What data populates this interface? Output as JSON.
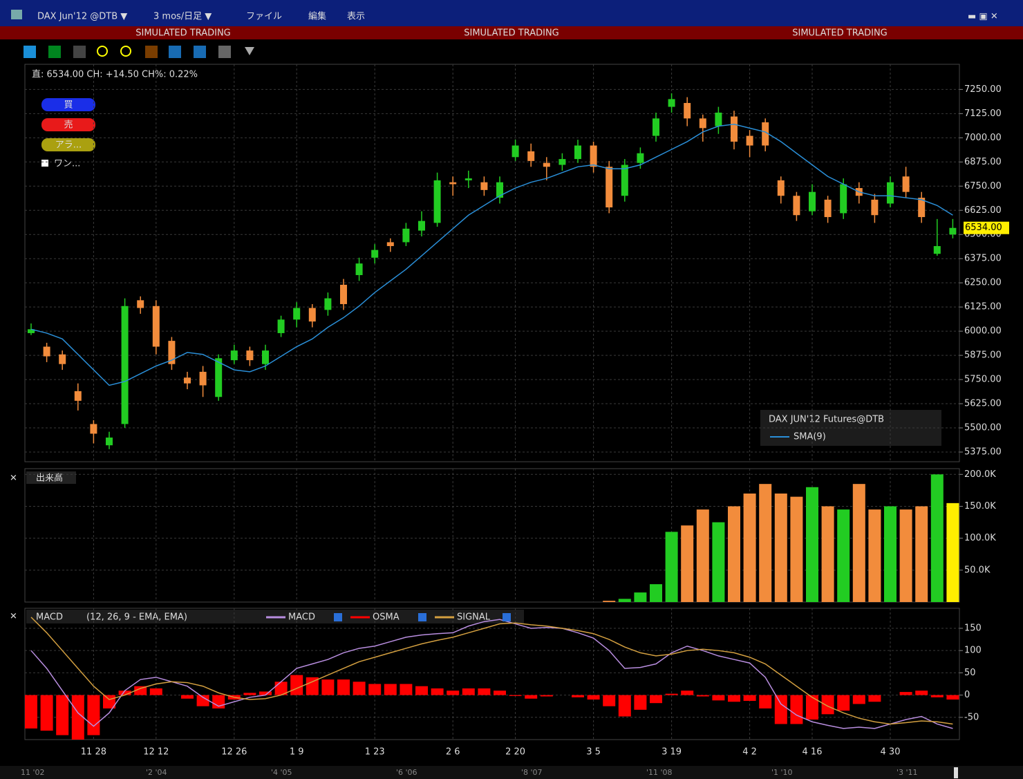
{
  "window": {
    "symbol": "DAX Jun'12 @DTB ▼",
    "period": "3 mos/日足 ▼",
    "menu": [
      "ファイル",
      "編集",
      "表示"
    ],
    "banner": [
      "SIMULATED TRADING",
      "SIMULATED TRADING",
      "SIMULATED TRADING"
    ]
  },
  "order_panel": {
    "info": "直: 6534.00 CH: +14.50 CH%: 0.22%",
    "buttons": [
      "買",
      "売",
      "アラ..."
    ],
    "checkbox": "ワン..."
  },
  "chart_data": [
    {
      "type": "candlestick",
      "legend_title": "DAX JUN'12 Futures@DTB",
      "up_color": "#22cc22",
      "down_color": "#f28c3c",
      "categories": [
        null,
        null,
        null,
        null,
        "11 28",
        null,
        null,
        null,
        "12 12",
        null,
        null,
        null,
        null,
        "12 26",
        null,
        null,
        null,
        "1 9",
        null,
        null,
        null,
        null,
        "1 23",
        null,
        null,
        null,
        null,
        "2 6",
        null,
        null,
        null,
        "2 20",
        null,
        null,
        null,
        null,
        "3 5",
        null,
        null,
        null,
        null,
        "3 19",
        null,
        null,
        null,
        null,
        "4 2",
        null,
        null,
        null,
        "4 16",
        null,
        null,
        null,
        null,
        "4 30",
        null,
        null,
        null,
        null
      ],
      "open": [
        5990,
        5920,
        5880,
        5690,
        5520,
        5410,
        5520,
        6160,
        6130,
        5950,
        5760,
        5790,
        5660,
        5850,
        5900,
        5830,
        5990,
        6060,
        6120,
        6110,
        6240,
        6290,
        6380,
        6460,
        6460,
        6520,
        6560,
        6770,
        6780,
        6770,
        6690,
        6900,
        6930,
        6870,
        6860,
        6890,
        6960,
        6850,
        6700,
        6870,
        7010,
        7160,
        7180,
        7100,
        7060,
        7110,
        7010,
        7080,
        6780,
        6700,
        6620,
        6680,
        6610,
        6740,
        6680,
        6660,
        6800,
        6690,
        6400,
        6500
      ],
      "high": [
        6040,
        5940,
        5900,
        5730,
        5540,
        5480,
        6170,
        6180,
        6160,
        5970,
        5790,
        5820,
        5880,
        5930,
        5920,
        5930,
        6080,
        6150,
        6140,
        6200,
        6270,
        6380,
        6450,
        6480,
        6560,
        6620,
        6820,
        6800,
        6830,
        6800,
        6800,
        6990,
        6970,
        6900,
        6920,
        6990,
        6980,
        6880,
        6890,
        6950,
        7130,
        7230,
        7210,
        7120,
        7160,
        7140,
        7040,
        7100,
        6800,
        6720,
        6760,
        6700,
        6790,
        6770,
        6710,
        6800,
        6850,
        6720,
        6580,
        6580
      ],
      "low": [
        5980,
        5840,
        5800,
        5590,
        5420,
        5390,
        5500,
        6090,
        5880,
        5800,
        5700,
        5660,
        5640,
        5830,
        5820,
        5800,
        5970,
        6020,
        6020,
        6080,
        6110,
        6260,
        6350,
        6410,
        6440,
        6490,
        6540,
        6700,
        6740,
        6700,
        6660,
        6880,
        6850,
        6780,
        6830,
        6870,
        6820,
        6610,
        6670,
        6840,
        6980,
        7130,
        7060,
        6980,
        7020,
        6940,
        6900,
        6930,
        6660,
        6570,
        6600,
        6560,
        6580,
        6660,
        6560,
        6640,
        6690,
        6560,
        6390,
        6480
      ],
      "close": [
        6010,
        5870,
        5830,
        5640,
        5470,
        5450,
        6130,
        6120,
        5920,
        5830,
        5730,
        5720,
        5860,
        5900,
        5850,
        5900,
        6060,
        6120,
        6050,
        6170,
        6140,
        6350,
        6420,
        6440,
        6530,
        6570,
        6780,
        6760,
        6790,
        6730,
        6770,
        6960,
        6880,
        6850,
        6890,
        6960,
        6850,
        6640,
        6860,
        6920,
        7100,
        7200,
        7100,
        7050,
        7130,
        6980,
        6960,
        6960,
        6700,
        6600,
        6720,
        6590,
        6760,
        6700,
        6600,
        6770,
        6720,
        6590,
        6440,
        6534
      ],
      "sma": {
        "name": "SMA(9)",
        "color": "#2a8fd8",
        "values": [
          6010,
          5990,
          5960,
          5880,
          5800,
          5720,
          5740,
          5780,
          5820,
          5850,
          5890,
          5880,
          5840,
          5800,
          5790,
          5820,
          5870,
          5920,
          5960,
          6020,
          6070,
          6130,
          6200,
          6260,
          6320,
          6390,
          6460,
          6530,
          6600,
          6650,
          6700,
          6740,
          6770,
          6790,
          6820,
          6850,
          6860,
          6840,
          6840,
          6860,
          6900,
          6940,
          6980,
          7030,
          7060,
          7070,
          7050,
          7030,
          6980,
          6920,
          6860,
          6800,
          6760,
          6720,
          6700,
          6700,
          6690,
          6680,
          6650,
          6600
        ]
      },
      "last_price": {
        "value": 6534,
        "label": "6534.00"
      },
      "ylim": [
        5325,
        7380
      ],
      "yticks": [
        {
          "value": 7250,
          "label": "7250.00"
        },
        {
          "value": 7125,
          "label": "7125.00"
        },
        {
          "value": 7000,
          "label": "7000.00"
        },
        {
          "value": 6875,
          "label": "6875.00"
        },
        {
          "value": 6750,
          "label": "6750.00"
        },
        {
          "value": 6625,
          "label": "6625.00"
        },
        {
          "value": 6500,
          "label": "6500.00"
        },
        {
          "value": 6375,
          "label": "6375.00"
        },
        {
          "value": 6250,
          "label": "6250.00"
        },
        {
          "value": 6125,
          "label": "6125.00"
        },
        {
          "value": 6000,
          "label": "6000.00"
        },
        {
          "value": 5875,
          "label": "5875.00"
        },
        {
          "value": 5750,
          "label": "5750.00"
        },
        {
          "value": 5625,
          "label": "5625.00"
        },
        {
          "value": 5500,
          "label": "5500.00"
        },
        {
          "value": 5375,
          "label": "5375.00"
        }
      ],
      "grid": true
    },
    {
      "type": "bar",
      "title": "出来高",
      "up_color": "#22cc22",
      "down_color": "#f28c3c",
      "highlight_color": "#ffee00",
      "values": [
        0,
        0,
        0,
        0,
        0,
        0,
        0,
        0,
        0,
        0,
        0,
        0,
        0,
        0,
        0,
        0,
        0,
        0,
        0,
        0,
        0,
        0,
        0,
        0,
        0,
        0,
        0,
        0,
        0,
        0,
        0,
        0,
        0,
        0,
        0,
        0,
        0,
        2000,
        5000,
        15000,
        28000,
        110000,
        120000,
        145000,
        125000,
        150000,
        170000,
        185000,
        170000,
        165000,
        180000,
        150000,
        145000,
        185000,
        145000,
        150000,
        145000,
        150000,
        200000,
        155000
      ],
      "ylim": [
        0,
        209000
      ],
      "yticks": [
        {
          "value": 200000,
          "label": "200.0K"
        },
        {
          "value": 150000,
          "label": "150.0K"
        },
        {
          "value": 100000,
          "label": "100.0K"
        },
        {
          "value": 50000,
          "label": "50.0K"
        }
      ],
      "grid": true
    },
    {
      "type": "macd",
      "title": "MACD",
      "params": "(12, 26, 9 - EMA, EMA)",
      "series": [
        {
          "name": "MACD",
          "color": "#b98ee0",
          "values": [
            100,
            60,
            10,
            -40,
            -70,
            -40,
            10,
            35,
            40,
            30,
            20,
            -5,
            -25,
            -15,
            -5,
            0,
            30,
            60,
            70,
            80,
            95,
            105,
            110,
            120,
            130,
            135,
            138,
            140,
            155,
            165,
            170,
            160,
            150,
            152,
            150,
            140,
            128,
            100,
            60,
            62,
            70,
            95,
            110,
            100,
            88,
            80,
            72,
            40,
            -20,
            -45,
            -60,
            -68,
            -75,
            -72,
            -75,
            -65,
            -55,
            -48,
            -65,
            -75
          ]
        },
        {
          "name": "OSMA",
          "color": "#ff0000",
          "values": [
            -75,
            -80,
            -90,
            -100,
            -90,
            -30,
            10,
            20,
            15,
            0,
            -8,
            -25,
            -30,
            -10,
            5,
            8,
            30,
            45,
            40,
            35,
            35,
            30,
            25,
            25,
            25,
            20,
            15,
            10,
            15,
            15,
            10,
            -2,
            -8,
            -3,
            0,
            -5,
            -10,
            -25,
            -48,
            -33,
            -18,
            3,
            10,
            -3,
            -12,
            -15,
            -13,
            -30,
            -65,
            -65,
            -55,
            -43,
            -35,
            -20,
            -15,
            0,
            7,
            10,
            -5,
            -10
          ]
        },
        {
          "name": "SIGNAL",
          "color": "#d4a040",
          "values": [
            175,
            140,
            100,
            60,
            20,
            -10,
            0,
            15,
            25,
            30,
            28,
            20,
            5,
            -5,
            -10,
            -8,
            0,
            15,
            30,
            45,
            60,
            75,
            85,
            95,
            105,
            115,
            123,
            130,
            140,
            150,
            160,
            162,
            158,
            155,
            150,
            145,
            138,
            125,
            108,
            95,
            88,
            92,
            100,
            103,
            100,
            95,
            85,
            70,
            45,
            20,
            -5,
            -25,
            -40,
            -52,
            -60,
            -65,
            -62,
            -58,
            -60,
            -65
          ]
        }
      ],
      "ylim": [
        -100,
        195
      ],
      "yticks": [
        150,
        100,
        50,
        0,
        -50
      ],
      "grid": true
    }
  ],
  "scrollbar_labels": [
    "11 '02",
    "'2 '04",
    "'4 '05",
    "'6 '06",
    "'8 '07",
    "'11 '08",
    "'1 '10",
    "'3 '11"
  ]
}
